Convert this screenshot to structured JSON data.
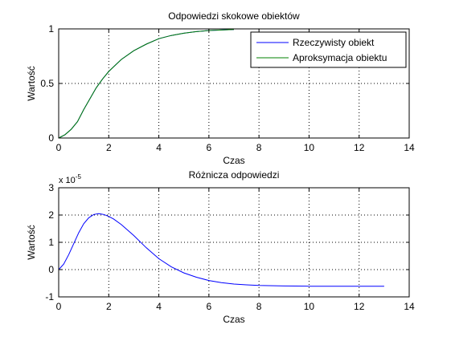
{
  "figure_bg": "#ffffff",
  "chart_data": [
    {
      "type": "line",
      "title": "Odpowiedzi skokowe obiektów",
      "xlabel": "Czas",
      "ylabel": "Wartość",
      "xlim": [
        0,
        14
      ],
      "ylim": [
        0,
        1
      ],
      "xticks": [
        "0",
        "2",
        "4",
        "6",
        "8",
        "10",
        "12",
        "14"
      ],
      "yticks": [
        "0",
        "0.5",
        "1"
      ],
      "grid": true,
      "legend": {
        "position": "top-right",
        "entries": [
          "Rzeczywisty obiekt",
          "Aproksymacja obiektu"
        ]
      },
      "series": [
        {
          "name": "Rzeczywisty obiekt",
          "color": "#0000ff",
          "x": [
            0,
            0.25,
            0.5,
            0.75,
            1.0,
            1.25,
            1.5,
            1.75,
            2.0,
            2.5,
            3.0,
            3.5,
            4.0,
            4.5,
            5.0,
            5.5,
            6.0,
            6.5,
            7.0
          ],
          "y": [
            0,
            0.03,
            0.08,
            0.15,
            0.26,
            0.36,
            0.46,
            0.54,
            0.61,
            0.72,
            0.8,
            0.86,
            0.91,
            0.94,
            0.96,
            0.975,
            0.985,
            0.99,
            0.995
          ]
        },
        {
          "name": "Aproksymacja obiektu",
          "color": "#008000",
          "x": [
            0,
            0.25,
            0.5,
            0.75,
            1.0,
            1.25,
            1.5,
            1.75,
            2.0,
            2.5,
            3.0,
            3.5,
            4.0,
            4.5,
            5.0,
            5.5,
            6.0,
            6.5,
            7.0
          ],
          "y": [
            0,
            0.03,
            0.08,
            0.15,
            0.26,
            0.36,
            0.46,
            0.54,
            0.61,
            0.72,
            0.8,
            0.86,
            0.91,
            0.94,
            0.96,
            0.975,
            0.985,
            0.99,
            0.995
          ]
        }
      ]
    },
    {
      "type": "line",
      "title": "Różnicza odpowiedzi",
      "xlabel": "Czas",
      "ylabel": "Wartość",
      "exponent_label": "x 10",
      "exponent_power": "-5",
      "xlim": [
        0,
        14
      ],
      "ylim": [
        -1,
        3
      ],
      "xticks": [
        "0",
        "2",
        "4",
        "6",
        "8",
        "10",
        "12",
        "14"
      ],
      "yticks": [
        "-1",
        "0",
        "1",
        "2",
        "3"
      ],
      "grid": true,
      "series": [
        {
          "color": "#0000ff",
          "x": [
            0,
            0.2,
            0.4,
            0.6,
            0.8,
            1.0,
            1.2,
            1.4,
            1.6,
            1.8,
            2.0,
            2.2,
            2.5,
            3.0,
            3.5,
            4.0,
            4.5,
            5.0,
            5.5,
            6.0,
            6.5,
            7.0,
            7.5,
            8.0,
            9.0,
            10.0,
            11.0,
            12.0,
            13.0
          ],
          "y": [
            0,
            0.2,
            0.55,
            0.95,
            1.35,
            1.68,
            1.9,
            2.02,
            2.05,
            2.02,
            1.95,
            1.85,
            1.65,
            1.25,
            0.8,
            0.4,
            0.1,
            -0.12,
            -0.28,
            -0.4,
            -0.48,
            -0.53,
            -0.56,
            -0.58,
            -0.6,
            -0.61,
            -0.61,
            -0.61,
            -0.61
          ]
        }
      ]
    }
  ]
}
